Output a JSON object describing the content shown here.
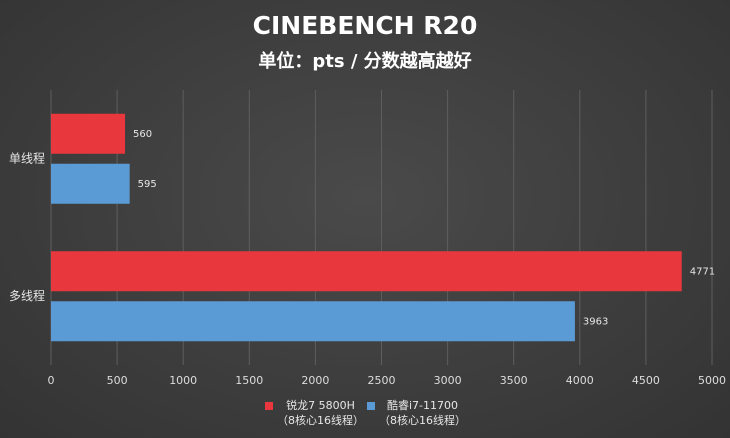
{
  "chart_data": {
    "type": "hbar",
    "title": "CINEBENCH R20",
    "subtitle": "单位：pts / 分数越高越好",
    "categories": [
      "单线程",
      "多线程"
    ],
    "series": [
      {
        "name": "锐龙7 5800H\n（8核心16线程）",
        "color": "#e8383d",
        "values": [
          560,
          4771
        ]
      },
      {
        "name": "酷睿i7-11700\n（8核心16线程）",
        "color": "#5b9bd5",
        "values": [
          595,
          3963
        ]
      }
    ],
    "xlim": [
      0,
      5000
    ],
    "xticks": [
      0,
      500,
      1000,
      1500,
      2000,
      2500,
      3000,
      3500,
      4000,
      4500,
      5000
    ],
    "grid": true
  }
}
